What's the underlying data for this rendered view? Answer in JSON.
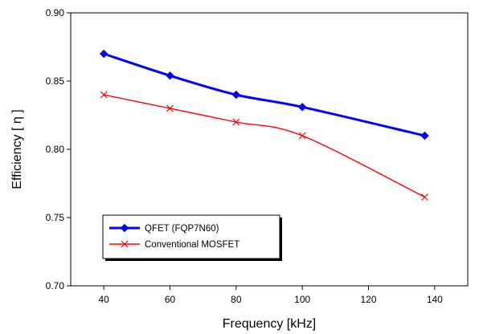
{
  "chart_data": {
    "type": "line",
    "xlabel": "Frequency  [kHz]",
    "ylabel": "Efficiency [ η ]",
    "xlim": [
      30,
      150
    ],
    "ylim": [
      0.7,
      0.9
    ],
    "xticks": [
      40,
      60,
      80,
      100,
      120,
      140
    ],
    "yticks": [
      0.7,
      0.75,
      0.8,
      0.85,
      0.9
    ],
    "xtick_labels": [
      "40",
      "60",
      "80",
      "100",
      "120",
      "140"
    ],
    "ytick_labels": [
      "0.70",
      "0.75",
      "0.80",
      "0.85",
      "0.90"
    ],
    "grid": false,
    "legend_position": "lower-left",
    "series": [
      {
        "name": "QFET (FQP7N60)",
        "color": "#0000ff",
        "marker": "diamond",
        "x": [
          40,
          60,
          80,
          100,
          137
        ],
        "values": [
          0.87,
          0.854,
          0.84,
          0.831,
          0.81
        ]
      },
      {
        "name": "Conventional MOSFET",
        "color": "#ff0000",
        "marker": "x",
        "x": [
          40,
          60,
          80,
          100,
          137
        ],
        "values": [
          0.84,
          0.83,
          0.82,
          0.81,
          0.765
        ]
      }
    ]
  }
}
